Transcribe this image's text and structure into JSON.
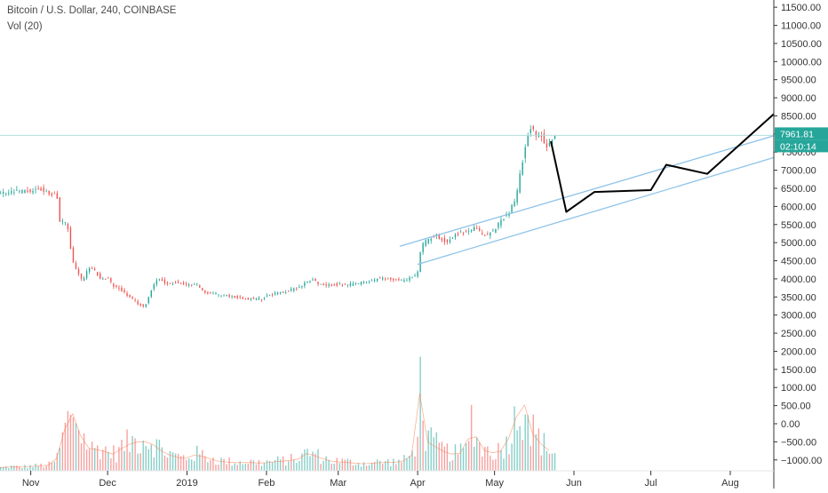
{
  "header": {
    "symbol_line": "Bitcoin / U.S. Dollar, 240, COINBASE",
    "volume_line": "Vol (20)"
  },
  "price_badge": {
    "value": "7961.81",
    "countdown": "02:10:14",
    "color": "#26a69a"
  },
  "colors": {
    "up": "#26a69a",
    "down": "#ef5350",
    "channel": "#8fc3e8",
    "projection": "#000000",
    "price_line": "#b2dfdb"
  },
  "chart_data": {
    "type": "candlestick",
    "title": "Bitcoin / U.S. Dollar, 240, COINBASE",
    "y_axis": {
      "range": [
        -1300,
        11700
      ],
      "ticks": [
        "11500.00",
        "11000.00",
        "10500.00",
        "10000.00",
        "9500.00",
        "9000.00",
        "8500.00",
        "8000.00",
        "7500.00",
        "7000.00",
        "6500.00",
        "6000.00",
        "5500.00",
        "5000.00",
        "4500.00",
        "4000.00",
        "3500.00",
        "3000.00",
        "2500.00",
        "2000.00",
        "1500.00",
        "1000.00",
        "500.00",
        "0.00",
        "−500.00",
        "−1000.00"
      ],
      "tick_values": [
        11500,
        11000,
        10500,
        10000,
        9500,
        9000,
        8500,
        8000,
        7500,
        7000,
        6500,
        6000,
        5500,
        5000,
        4500,
        4000,
        3500,
        3000,
        2500,
        2000,
        1500,
        1000,
        500,
        0,
        -500,
        -1000
      ]
    },
    "x_axis": {
      "ticks": [
        "Nov",
        "Dec",
        "2019",
        "Feb",
        "Mar",
        "Apr",
        "May",
        "Jun",
        "Jul",
        "Aug"
      ],
      "tick_days": [
        0,
        30,
        61,
        92,
        120,
        151,
        181,
        212,
        242,
        273
      ],
      "range_days": [
        -12,
        290
      ]
    },
    "price_series": [
      [
        -12,
        6350
      ],
      [
        -6,
        6400
      ],
      [
        0,
        6420
      ],
      [
        3,
        6500
      ],
      [
        5,
        6400
      ],
      [
        8,
        6350
      ],
      [
        10,
        6300
      ],
      [
        11,
        5600
      ],
      [
        14,
        5500
      ],
      [
        16,
        4500
      ],
      [
        18,
        4200
      ],
      [
        20,
        3900
      ],
      [
        22,
        4300
      ],
      [
        25,
        4200
      ],
      [
        27,
        4000
      ],
      [
        30,
        4000
      ],
      [
        32,
        3800
      ],
      [
        35,
        3700
      ],
      [
        38,
        3500
      ],
      [
        41,
        3350
      ],
      [
        44,
        3200
      ],
      [
        46,
        3550
      ],
      [
        48,
        3900
      ],
      [
        50,
        4000
      ],
      [
        53,
        3850
      ],
      [
        56,
        3900
      ],
      [
        59,
        3850
      ],
      [
        61,
        3800
      ],
      [
        64,
        3900
      ],
      [
        67,
        3650
      ],
      [
        70,
        3600
      ],
      [
        75,
        3550
      ],
      [
        80,
        3500
      ],
      [
        85,
        3450
      ],
      [
        90,
        3450
      ],
      [
        92,
        3550
      ],
      [
        95,
        3600
      ],
      [
        100,
        3650
      ],
      [
        105,
        3800
      ],
      [
        108,
        3950
      ],
      [
        110,
        4000
      ],
      [
        112,
        3850
      ],
      [
        115,
        3800
      ],
      [
        118,
        3850
      ],
      [
        122,
        3820
      ],
      [
        126,
        3850
      ],
      [
        130,
        3900
      ],
      [
        135,
        4000
      ],
      [
        140,
        4000
      ],
      [
        144,
        3950
      ],
      [
        147,
        4000
      ],
      [
        150,
        4100
      ],
      [
        151,
        4200
      ],
      [
        152,
        4900
      ],
      [
        155,
        5100
      ],
      [
        158,
        5200
      ],
      [
        162,
        5000
      ],
      [
        166,
        5250
      ],
      [
        170,
        5300
      ],
      [
        173,
        5400
      ],
      [
        175,
        5300
      ],
      [
        177,
        5200
      ],
      [
        180,
        5300
      ],
      [
        183,
        5600
      ],
      [
        186,
        5800
      ],
      [
        189,
        6200
      ],
      [
        191,
        7000
      ],
      [
        193,
        7800
      ],
      [
        195,
        8200
      ],
      [
        197,
        7900
      ],
      [
        199,
        8000
      ],
      [
        201,
        7600
      ],
      [
        203,
        7900
      ],
      [
        205,
        7961
      ]
    ],
    "volume_series": [
      [
        -12,
        150
      ],
      [
        -8,
        200
      ],
      [
        -4,
        180
      ],
      [
        0,
        220
      ],
      [
        4,
        250
      ],
      [
        8,
        300
      ],
      [
        10,
        600
      ],
      [
        12,
        1400
      ],
      [
        14,
        2500
      ],
      [
        15,
        1800
      ],
      [
        16,
        3000
      ],
      [
        18,
        2200
      ],
      [
        20,
        1600
      ],
      [
        22,
        1200
      ],
      [
        24,
        1000
      ],
      [
        27,
        1100
      ],
      [
        30,
        900
      ],
      [
        33,
        800
      ],
      [
        36,
        1200
      ],
      [
        40,
        1400
      ],
      [
        44,
        1500
      ],
      [
        48,
        1300
      ],
      [
        52,
        900
      ],
      [
        56,
        700
      ],
      [
        60,
        600
      ],
      [
        64,
        800
      ],
      [
        68,
        700
      ],
      [
        72,
        500
      ],
      [
        76,
        450
      ],
      [
        80,
        400
      ],
      [
        85,
        420
      ],
      [
        90,
        380
      ],
      [
        95,
        450
      ],
      [
        100,
        500
      ],
      [
        105,
        600
      ],
      [
        108,
        900
      ],
      [
        112,
        700
      ],
      [
        116,
        500
      ],
      [
        120,
        450
      ],
      [
        125,
        400
      ],
      [
        130,
        350
      ],
      [
        135,
        400
      ],
      [
        140,
        420
      ],
      [
        145,
        450
      ],
      [
        150,
        900
      ],
      [
        151,
        3800
      ],
      [
        152,
        3900
      ],
      [
        154,
        1500
      ],
      [
        158,
        1200
      ],
      [
        162,
        900
      ],
      [
        166,
        800
      ],
      [
        170,
        1000
      ],
      [
        172,
        2700
      ],
      [
        175,
        1100
      ],
      [
        180,
        900
      ],
      [
        184,
        1000
      ],
      [
        188,
        2000
      ],
      [
        190,
        2900
      ],
      [
        192,
        3000
      ],
      [
        193,
        3400
      ],
      [
        195,
        2000
      ],
      [
        198,
        1500
      ],
      [
        201,
        1100
      ],
      [
        204,
        900
      ],
      [
        205,
        700
      ]
    ],
    "channel_lines": [
      {
        "from": [
          144,
          4900
        ],
        "to": [
          290,
          7950
        ]
      },
      [
        [
          151,
          4400
        ],
        [
          290,
          7350
        ]
      ]
    ],
    "projection_path": [
      [
        203,
        7800
      ],
      [
        209,
        5850
      ],
      [
        220,
        6400
      ],
      [
        242,
        6450
      ],
      [
        248,
        7150
      ],
      [
        264,
        6900
      ],
      [
        290,
        8550
      ]
    ],
    "last_price": 7961.81
  }
}
